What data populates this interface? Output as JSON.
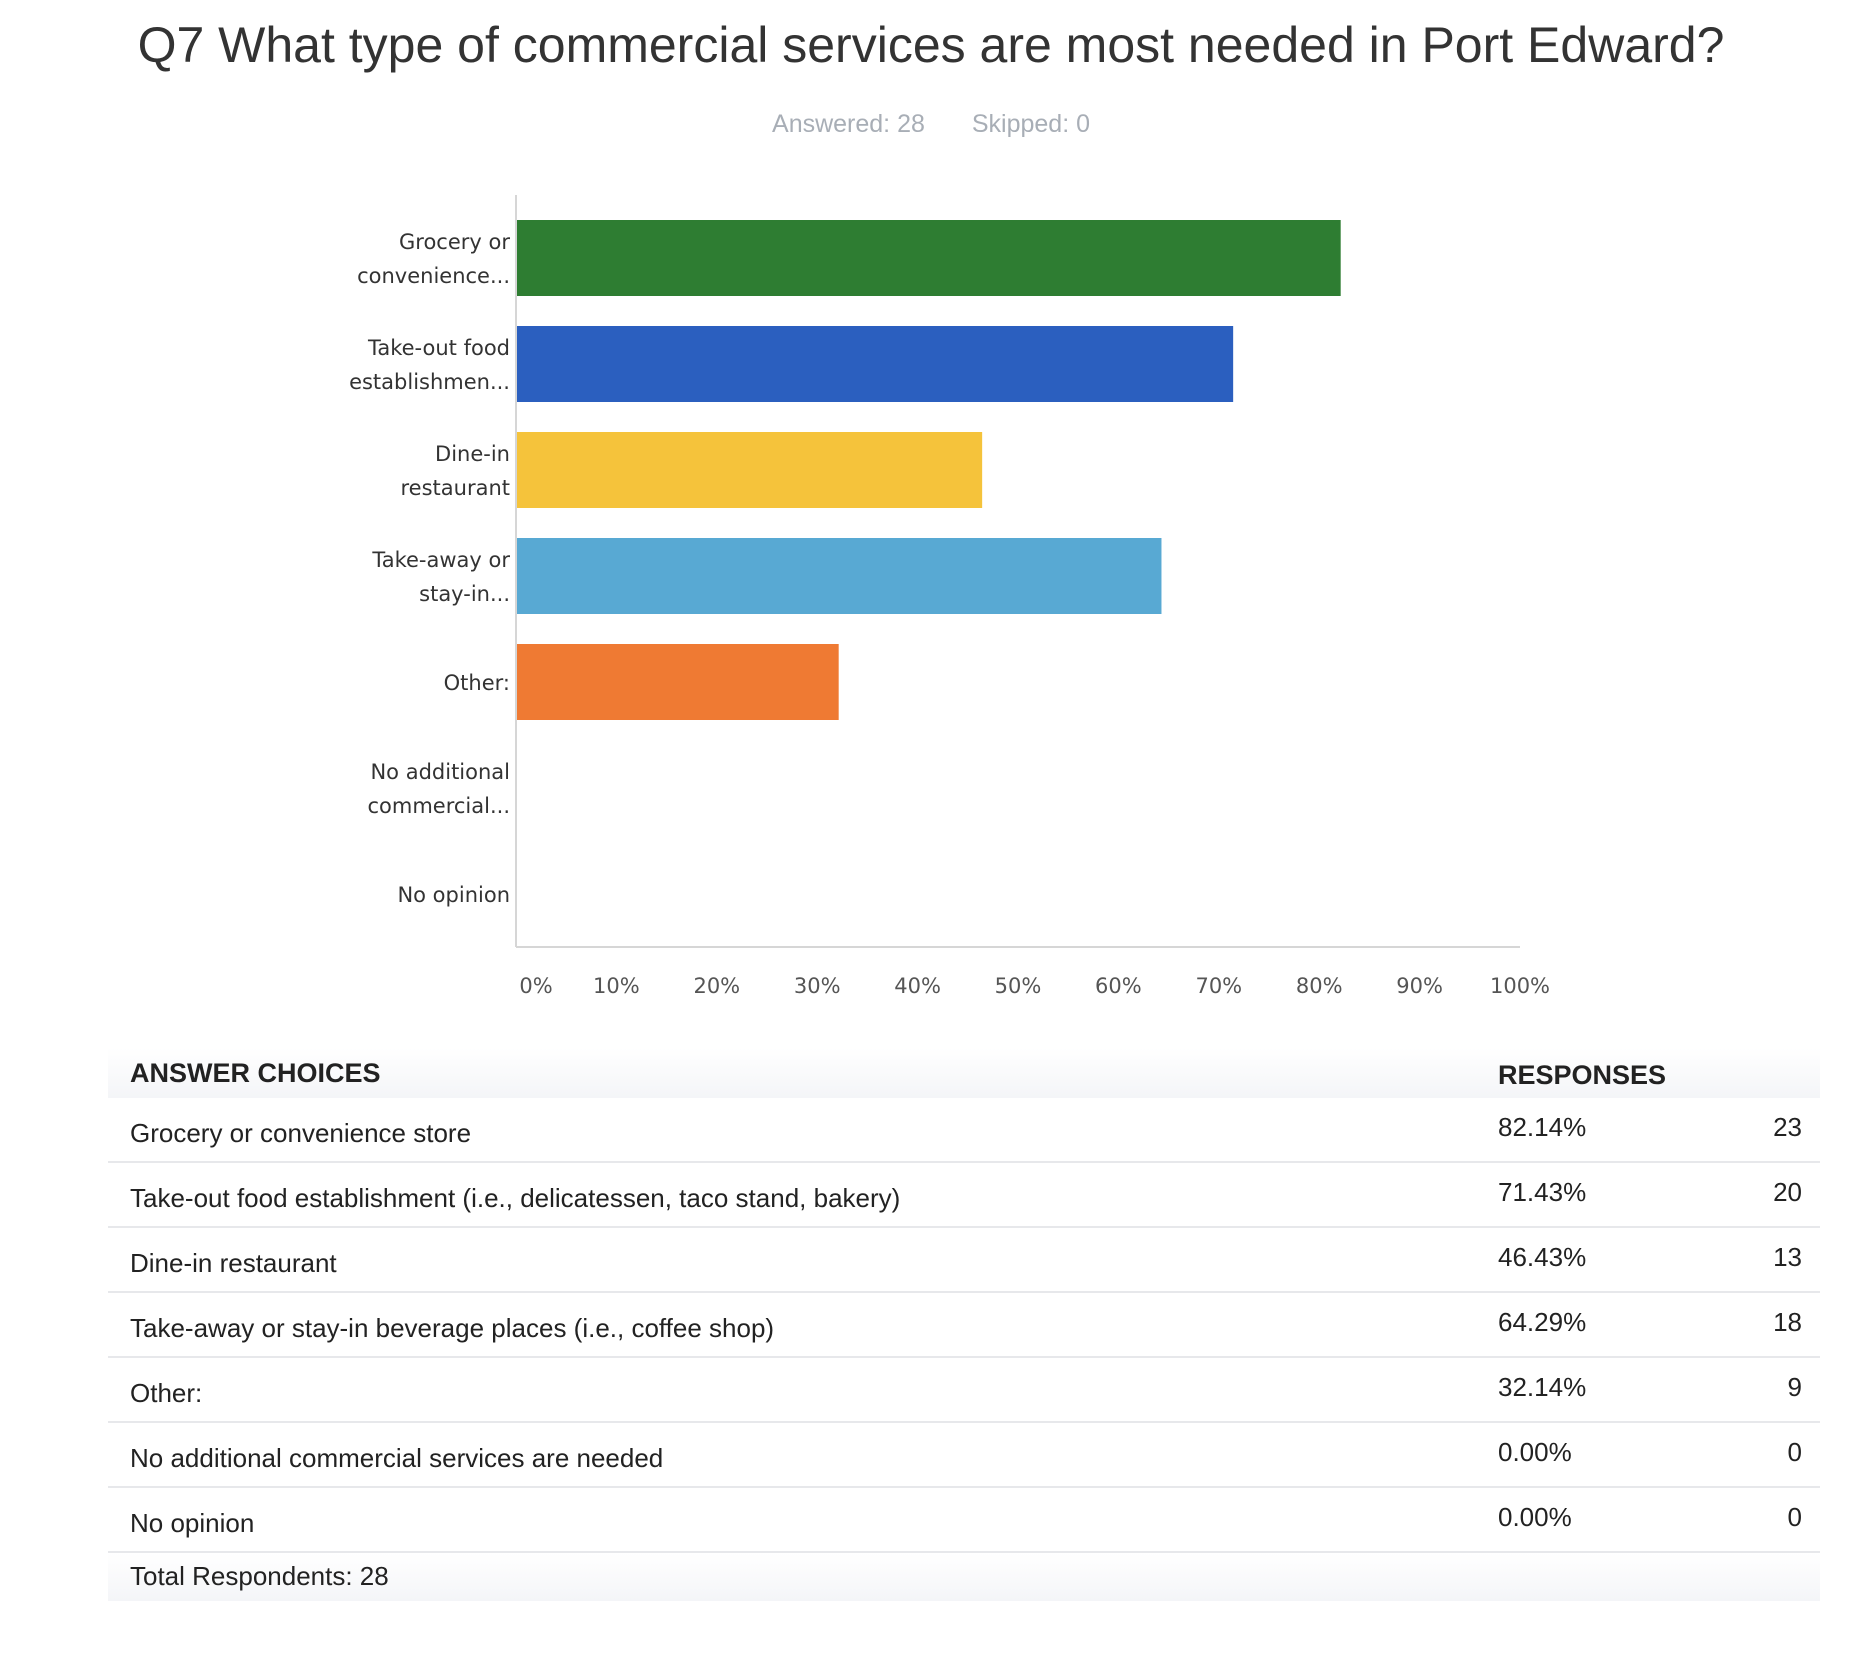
{
  "title": "Q7 What type of commercial services are most needed in Port Edward?",
  "stats": {
    "answered": "Answered: 28",
    "skipped": "Skipped: 0"
  },
  "colors": [
    "#2e7d32",
    "#2b5fbf",
    "#f5c33b",
    "#58a9d3",
    "#ef7a33",
    "#9e9e9e",
    "#9e9e9e"
  ],
  "chart_data": {
    "type": "bar",
    "orientation": "horizontal",
    "categories": [
      [
        "Grocery or",
        "convenience..."
      ],
      [
        "Take-out food",
        "establishmen..."
      ],
      [
        "Dine-in",
        "restaurant"
      ],
      [
        "Take-away or",
        "stay-in..."
      ],
      [
        "Other:"
      ],
      [
        "No additional",
        "commercial..."
      ],
      [
        "No opinion"
      ]
    ],
    "values": [
      82.14,
      71.43,
      46.43,
      64.29,
      32.14,
      0,
      0
    ],
    "xlim": [
      0,
      100
    ],
    "xticks": [
      "0%",
      "10%",
      "20%",
      "30%",
      "40%",
      "50%",
      "60%",
      "70%",
      "80%",
      "90%",
      "100%"
    ],
    "grid": false,
    "legend": "none"
  },
  "table": {
    "header_choices": "ANSWER CHOICES",
    "header_responses": "RESPONSES",
    "rows": [
      {
        "choice": "Grocery or convenience store",
        "percent": "82.14%",
        "count": "23"
      },
      {
        "choice": "Take-out food establishment (i.e., delicatessen, taco stand, bakery)",
        "percent": "71.43%",
        "count": "20"
      },
      {
        "choice": "Dine-in restaurant",
        "percent": "46.43%",
        "count": "13"
      },
      {
        "choice": "Take-away or stay-in beverage places (i.e., coffee shop)",
        "percent": "64.29%",
        "count": "18"
      },
      {
        "choice": "Other:",
        "percent": "32.14%",
        "count": "9"
      },
      {
        "choice": "No additional commercial services are needed",
        "percent": "0.00%",
        "count": "0"
      },
      {
        "choice": "No opinion",
        "percent": "0.00%",
        "count": "0"
      }
    ],
    "total": "Total Respondents: 28"
  }
}
